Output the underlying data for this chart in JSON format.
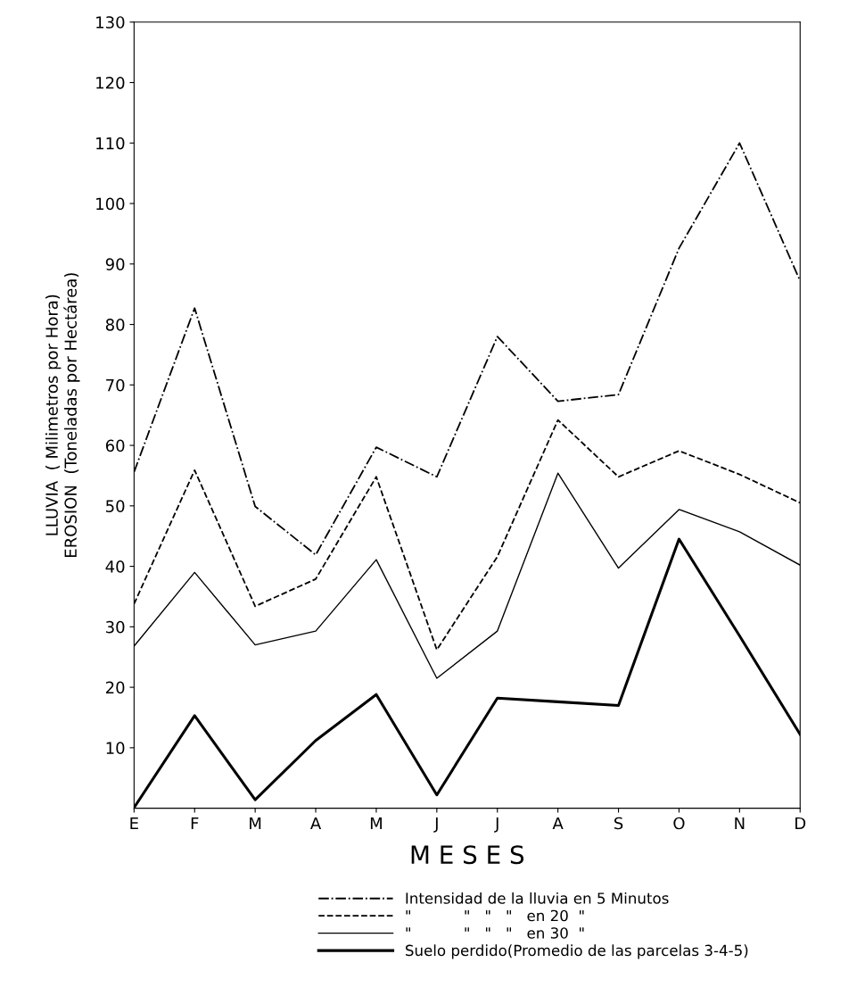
{
  "chart_data": {
    "type": "line",
    "xlabel": "M E S E S",
    "ylabel": "LLUVIA  ( Milimetros por Hora)\nEROSION  (Toneladas por Hectárea)",
    "categories": [
      "E",
      "F",
      "M",
      "A",
      "M",
      "J",
      "J",
      "A",
      "S",
      "O",
      "N",
      "D"
    ],
    "series": [
      {
        "name": "Intensidad de la lluvia en 5 Minutos",
        "color": "#000000",
        "line_style": "dashdot",
        "values": [
          55.6,
          82.7,
          49.9,
          41.9,
          59.7,
          54.8,
          78,
          67.3,
          68.4,
          92.6,
          110,
          87.2
        ]
      },
      {
        "name": "\"           \"   \"   \"   en 20  \"",
        "color": "#000000",
        "line_style": "dashed",
        "values": [
          33.8,
          55.9,
          33.4,
          37.9,
          54.8,
          26.2,
          41.6,
          64.2,
          54.8,
          59.1,
          55.2,
          50.5
        ]
      },
      {
        "name": "\"           \"   \"   \"   en 30  \"",
        "color": "#000000",
        "line_style": "solid",
        "values": [
          26.8,
          39,
          27,
          29.3,
          41.1,
          21.5,
          29.3,
          55.4,
          39.7,
          49.4,
          45.7,
          40.2
        ]
      },
      {
        "name": "Suelo perdido(Promedio de las parcelas 3-4-5)",
        "color": "#000000",
        "line_style": "solid",
        "values": [
          0.1,
          15.3,
          1.4,
          11.2,
          18.8,
          2.2,
          18.2,
          17.6,
          17,
          44.5,
          28.5,
          12.2
        ]
      }
    ],
    "ylim": [
      0,
      130
    ],
    "yticks": [
      10,
      20,
      30,
      40,
      50,
      60,
      70,
      80,
      90,
      100,
      110,
      120,
      130
    ],
    "grid": false,
    "legend": "bottom",
    "marker": "none"
  }
}
